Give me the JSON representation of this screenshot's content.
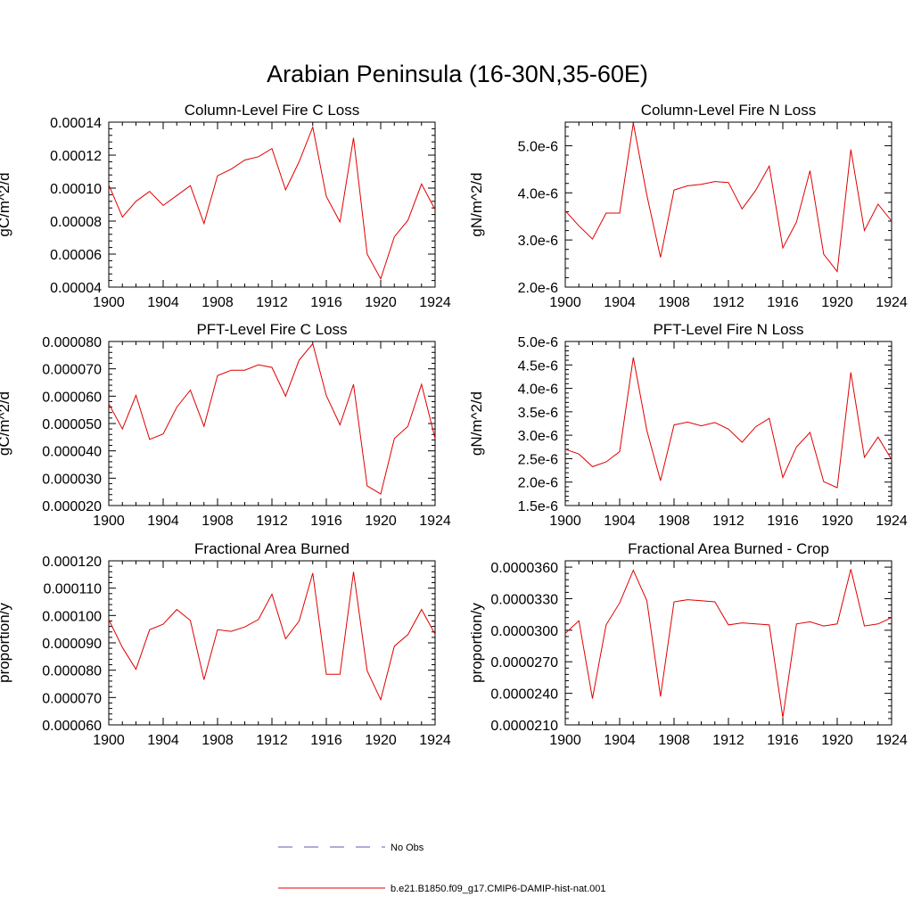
{
  "figure": {
    "title": "Arabian Peninsula (16-30N,35-60E)"
  },
  "legend": [
    {
      "label": "No Obs",
      "color": "#5b5bb5",
      "dash": "dashed"
    },
    {
      "label": "b.e21.B1850.f09_g17.CMIP6-DAMIP-hist-nat.001",
      "color": "#e00000",
      "dash": "solid"
    }
  ],
  "chart_data": [
    {
      "type": "line",
      "title": "Column-Level Fire C Loss",
      "ylabel": "gC/m^2/d",
      "xlim": [
        1900,
        1924
      ],
      "ylim": [
        4e-05,
        0.00014
      ],
      "xticks": [
        1900,
        1904,
        1908,
        1912,
        1916,
        1920,
        1924
      ],
      "xtick_labels": [
        "1900",
        "1904",
        "1908",
        "1912",
        "1916",
        "1920",
        "1924"
      ],
      "yticks": [
        4e-05,
        6e-05,
        8e-05,
        0.0001,
        0.00012,
        0.00014
      ],
      "ytick_labels": [
        "0.00004",
        "0.00006",
        "0.00008",
        "0.00010",
        "0.00012",
        "0.00014"
      ],
      "series": [
        {
          "color": "#e00000",
          "x": [
            1900,
            1901,
            1902,
            1903,
            1904,
            1905,
            1906,
            1907,
            1908,
            1909,
            1910,
            1911,
            1912,
            1913,
            1914,
            1915,
            1916,
            1917,
            1918,
            1919,
            1920,
            1921,
            1922,
            1923,
            1924
          ],
          "values": [
            0.000102,
            8.25e-05,
            9.2e-05,
            9.8e-05,
            8.95e-05,
            9.55e-05,
            0.0001015,
            7.85e-05,
            0.0001075,
            0.0001115,
            0.000117,
            0.000119,
            0.000124,
            9.9e-05,
            0.000116,
            0.000137,
            9.5e-05,
            7.95e-05,
            0.0001305,
            6e-05,
            4.5e-05,
            7.05e-05,
            8.05e-05,
            0.0001025,
            8.7e-05
          ]
        }
      ]
    },
    {
      "type": "line",
      "title": "Column-Level Fire N Loss",
      "ylabel": "gN/m^2/d",
      "xlim": [
        1900,
        1924
      ],
      "ylim": [
        2e-06,
        5.5e-06
      ],
      "xticks": [
        1900,
        1904,
        1908,
        1912,
        1916,
        1920,
        1924
      ],
      "xtick_labels": [
        "1900",
        "1904",
        "1908",
        "1912",
        "1916",
        "1920",
        "1924"
      ],
      "yticks": [
        2e-06,
        3e-06,
        4e-06,
        5e-06
      ],
      "ytick_labels": [
        "2.0e-6",
        "3.0e-6",
        "4.0e-6",
        "5.0e-6"
      ],
      "series": [
        {
          "color": "#e00000",
          "x": [
            1900,
            1901,
            1902,
            1903,
            1904,
            1905,
            1906,
            1907,
            1908,
            1909,
            1910,
            1911,
            1912,
            1913,
            1914,
            1915,
            1916,
            1917,
            1918,
            1919,
            1920,
            1921,
            1922,
            1923,
            1924
          ],
          "values": [
            3.62e-06,
            3.3e-06,
            3.02e-06,
            3.57e-06,
            3.57e-06,
            5.48e-06,
            3.95e-06,
            2.63e-06,
            4.06e-06,
            4.15e-06,
            4.18e-06,
            4.24e-06,
            4.22e-06,
            3.66e-06,
            4.05e-06,
            4.57e-06,
            2.83e-06,
            3.38e-06,
            4.47e-06,
            2.7e-06,
            2.33e-06,
            4.92e-06,
            3.2e-06,
            3.76e-06,
            3.4e-06
          ]
        }
      ]
    },
    {
      "type": "line",
      "title": "PFT-Level Fire C Loss",
      "ylabel": "gC/m^2/d",
      "xlim": [
        1900,
        1924
      ],
      "ylim": [
        2e-05,
        8e-05
      ],
      "xticks": [
        1900,
        1904,
        1908,
        1912,
        1916,
        1920,
        1924
      ],
      "xtick_labels": [
        "1900",
        "1904",
        "1908",
        "1912",
        "1916",
        "1920",
        "1924"
      ],
      "yticks": [
        2e-05,
        3e-05,
        4e-05,
        5e-05,
        6e-05,
        7e-05,
        8e-05
      ],
      "ytick_labels": [
        "0.000020",
        "0.000030",
        "0.000040",
        "0.000050",
        "0.000060",
        "0.000070",
        "0.000080"
      ],
      "series": [
        {
          "color": "#e00000",
          "x": [
            1900,
            1901,
            1902,
            1903,
            1904,
            1905,
            1906,
            1907,
            1908,
            1909,
            1910,
            1911,
            1912,
            1913,
            1914,
            1915,
            1916,
            1917,
            1918,
            1919,
            1920,
            1921,
            1922,
            1923,
            1924
          ],
          "values": [
            5.72e-05,
            4.8e-05,
            6.03e-05,
            4.42e-05,
            4.62e-05,
            5.6e-05,
            6.22e-05,
            4.9e-05,
            6.75e-05,
            6.95e-05,
            6.95e-05,
            7.15e-05,
            7.05e-05,
            6e-05,
            7.32e-05,
            7.92e-05,
            6.02e-05,
            4.95e-05,
            6.43e-05,
            2.72e-05,
            2.42e-05,
            4.45e-05,
            4.9e-05,
            6.43e-05,
            4.45e-05
          ]
        }
      ]
    },
    {
      "type": "line",
      "title": "PFT-Level Fire N Loss",
      "ylabel": "gN/m^2/d",
      "xlim": [
        1900,
        1924
      ],
      "ylim": [
        1.5e-06,
        5e-06
      ],
      "xticks": [
        1900,
        1904,
        1908,
        1912,
        1916,
        1920,
        1924
      ],
      "xtick_labels": [
        "1900",
        "1904",
        "1908",
        "1912",
        "1916",
        "1920",
        "1924"
      ],
      "yticks": [
        1.5e-06,
        2e-06,
        2.5e-06,
        3e-06,
        3.5e-06,
        4e-06,
        4.5e-06,
        5e-06
      ],
      "ytick_labels": [
        "1.5e-6",
        "2.0e-6",
        "2.5e-6",
        "3.0e-6",
        "3.5e-6",
        "4.0e-6",
        "4.5e-6",
        "5.0e-6"
      ],
      "series": [
        {
          "color": "#e00000",
          "x": [
            1900,
            1901,
            1902,
            1903,
            1904,
            1905,
            1906,
            1907,
            1908,
            1909,
            1910,
            1911,
            1912,
            1913,
            1914,
            1915,
            1916,
            1917,
            1918,
            1919,
            1920,
            1921,
            1922,
            1923,
            1924
          ],
          "values": [
            2.7e-06,
            2.6e-06,
            2.33e-06,
            2.43e-06,
            2.65e-06,
            4.66e-06,
            3.1e-06,
            2.03e-06,
            3.22e-06,
            3.28e-06,
            3.2e-06,
            3.27e-06,
            3.13e-06,
            2.85e-06,
            3.18e-06,
            3.36e-06,
            2.1e-06,
            2.75e-06,
            3.06e-06,
            2.01e-06,
            1.88e-06,
            4.34e-06,
            2.53e-06,
            2.96e-06,
            2.48e-06
          ]
        }
      ]
    },
    {
      "type": "line",
      "title": "Fractional Area Burned",
      "ylabel": "proportion/y",
      "xlim": [
        1900,
        1924
      ],
      "ylim": [
        6e-05,
        0.00012
      ],
      "xticks": [
        1900,
        1904,
        1908,
        1912,
        1916,
        1920,
        1924
      ],
      "xtick_labels": [
        "1900",
        "1904",
        "1908",
        "1912",
        "1916",
        "1920",
        "1924"
      ],
      "yticks": [
        6e-05,
        7e-05,
        8e-05,
        9e-05,
        0.0001,
        0.00011,
        0.00012
      ],
      "ytick_labels": [
        "0.000060",
        "0.000070",
        "0.000080",
        "0.000090",
        "0.000100",
        "0.000110",
        "0.000120"
      ],
      "series": [
        {
          "color": "#e00000",
          "x": [
            1900,
            1901,
            1902,
            1903,
            1904,
            1905,
            1906,
            1907,
            1908,
            1909,
            1910,
            1911,
            1912,
            1913,
            1914,
            1915,
            1916,
            1917,
            1918,
            1919,
            1920,
            1921,
            1922,
            1923,
            1924
          ],
          "values": [
            9.85e-05,
            8.83e-05,
            8.03e-05,
            9.48e-05,
            9.68e-05,
            0.0001022,
            9.82e-05,
            7.65e-05,
            9.48e-05,
            9.42e-05,
            9.58e-05,
            9.85e-05,
            0.0001078,
            9.15e-05,
            9.8e-05,
            0.0001155,
            7.85e-05,
            7.85e-05,
            0.000116,
            7.98e-05,
            6.92e-05,
            8.88e-05,
            9.3e-05,
            0.0001022,
            9.32e-05
          ]
        }
      ]
    },
    {
      "type": "line",
      "title": "Fractional Area Burned - Crop",
      "ylabel": "proportion/y",
      "xlim": [
        1900,
        1924
      ],
      "ylim": [
        2.1e-05,
        3.66e-05
      ],
      "xticks": [
        1900,
        1904,
        1908,
        1912,
        1916,
        1920,
        1924
      ],
      "xtick_labels": [
        "1900",
        "1904",
        "1908",
        "1912",
        "1916",
        "1920",
        "1924"
      ],
      "yticks": [
        2.1e-05,
        2.4e-05,
        2.7e-05,
        3e-05,
        3.3e-05,
        3.6e-05
      ],
      "ytick_labels": [
        "0.0000210",
        "0.0000240",
        "0.0000270",
        "0.0000300",
        "0.0000330",
        "0.0000360"
      ],
      "series": [
        {
          "color": "#e00000",
          "x": [
            1900,
            1901,
            1902,
            1903,
            1904,
            1905,
            1906,
            1907,
            1908,
            1909,
            1910,
            1911,
            1912,
            1913,
            1914,
            1915,
            1916,
            1917,
            1918,
            1919,
            1920,
            1921,
            1922,
            1923,
            1924
          ],
          "values": [
            2.97e-05,
            3.09e-05,
            2.35e-05,
            3.05e-05,
            3.26e-05,
            3.57e-05,
            3.28e-05,
            2.37e-05,
            3.27e-05,
            3.29e-05,
            3.28e-05,
            3.27e-05,
            3.05e-05,
            3.07e-05,
            3.06e-05,
            3.05e-05,
            2.17e-05,
            3.06e-05,
            3.08e-05,
            3.04e-05,
            3.06e-05,
            3.58e-05,
            3.04e-05,
            3.06e-05,
            3.12e-05
          ]
        }
      ]
    }
  ]
}
